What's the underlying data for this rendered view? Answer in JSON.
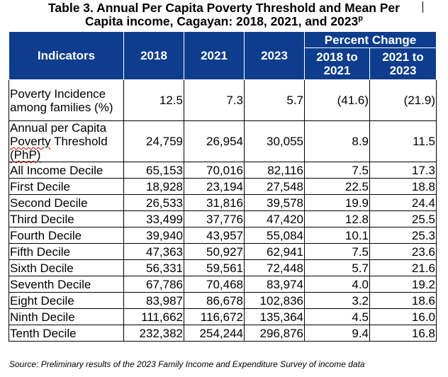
{
  "title": {
    "line1": "Table 3. Annual Per Capita Poverty Threshold and Mean Per",
    "line2": "Capita income, Cagayan: 2018, 2021, and 2023",
    "sup": "p"
  },
  "table": {
    "headers": {
      "indicators": "Indicators",
      "y2018": "2018",
      "y2021": "2021",
      "y2023": "2023",
      "percent_change": "Percent Change",
      "pc1": "2018 to 2021",
      "pc2": "2021 to 2023"
    },
    "rows": [
      {
        "label": "Poverty Incidence among families (%)",
        "v2018": "12.5",
        "v2021": "7.3",
        "v2023": "5.7",
        "pc1": "(41.6)",
        "pc2": "(21.9)"
      },
      {
        "label_pre": "Annual per Capita ",
        "label_w1": "Poverty",
        "label_mid": " Threshold ",
        "label_w2": "(PhP)",
        "v2018": "24,759",
        "v2021": "26,954",
        "v2023": "30,055",
        "pc1": "8.9",
        "pc2": "11.5"
      },
      {
        "label": "All Income Decile",
        "v2018": "65,153",
        "v2021": "70,016",
        "v2023": "82,116",
        "pc1": "7.5",
        "pc2": "17.3"
      },
      {
        "label": "First Decile",
        "v2018": "18,928",
        "v2021": "23,194",
        "v2023": "27,548",
        "pc1": "22.5",
        "pc2": "18.8"
      },
      {
        "label": "Second Decile",
        "v2018": "26,533",
        "v2021": "31,816",
        "v2023": "39,578",
        "pc1": "19.9",
        "pc2": "24.4"
      },
      {
        "label": "Third Decile",
        "v2018": "33,499",
        "v2021": "37,776",
        "v2023": "47,420",
        "pc1": "12.8",
        "pc2": "25.5"
      },
      {
        "label": "Fourth Decile",
        "v2018": "39,940",
        "v2021": "43,957",
        "v2023": "55,084",
        "pc1": "10.1",
        "pc2": "25.3"
      },
      {
        "label": "Fifth Decile",
        "v2018": "47,363",
        "v2021": "50,927",
        "v2023": "62,941",
        "pc1": "7.5",
        "pc2": "23.6"
      },
      {
        "label": "Sixth Decile",
        "v2018": "56,331",
        "v2021": "59,561",
        "v2023": "72,448",
        "pc1": "5.7",
        "pc2": "21.6"
      },
      {
        "label": "Seventh Decile",
        "v2018": "67,786",
        "v2021": "70,468",
        "v2023": "83,974",
        "pc1": "4.0",
        "pc2": "19.2"
      },
      {
        "label": "Eight Decile",
        "v2018": "83,987",
        "v2021": "86,678",
        "v2023": "102,836",
        "pc1": "3.2",
        "pc2": "18.6"
      },
      {
        "label": "Ninth Decile",
        "v2018": "111,662",
        "v2021": "116,672",
        "v2023": "135,364",
        "pc1": "4.5",
        "pc2": "16.0"
      },
      {
        "label": "Tenth Decile",
        "v2018": "232,382",
        "v2021": "254,244",
        "v2023": "296,876",
        "pc1": "9.4",
        "pc2": "16.8"
      }
    ]
  },
  "source": "Source: Preliminary results of the 2023 Family Income and Expenditure Survey of income data",
  "colors": {
    "header_bg": "#0d3d8c",
    "header_text": "#ffffff",
    "spellcheck_underline": "#c00000"
  }
}
